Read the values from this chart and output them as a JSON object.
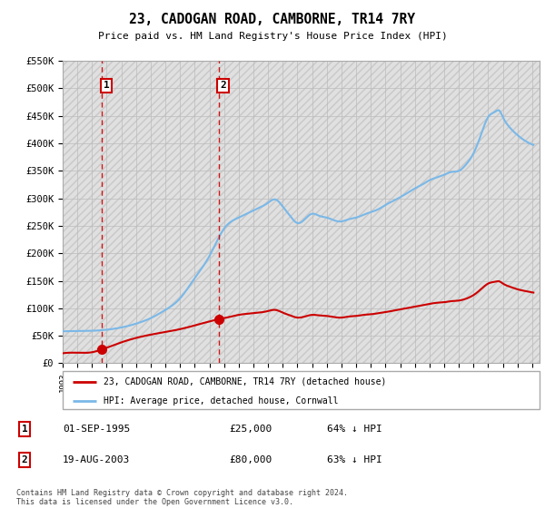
{
  "title": "23, CADOGAN ROAD, CAMBORNE, TR14 7RY",
  "subtitle": "Price paid vs. HM Land Registry's House Price Index (HPI)",
  "ylim": [
    0,
    550000
  ],
  "yticks": [
    0,
    50000,
    100000,
    150000,
    200000,
    250000,
    300000,
    350000,
    400000,
    450000,
    500000,
    550000
  ],
  "ytick_labels": [
    "£0",
    "£50K",
    "£100K",
    "£150K",
    "£200K",
    "£250K",
    "£300K",
    "£350K",
    "£400K",
    "£450K",
    "£500K",
    "£550K"
  ],
  "sale1_date": 1995.67,
  "sale1_price": 25000,
  "sale2_date": 2003.63,
  "sale2_price": 80000,
  "hpi_color": "#7ab8e8",
  "sale_color": "#cc0000",
  "vline_color": "#cc0000",
  "grid_color": "#bbbbbb",
  "hatch_color": "#d8d8d8",
  "legend1_text": "23, CADOGAN ROAD, CAMBORNE, TR14 7RY (detached house)",
  "legend2_text": "HPI: Average price, detached house, Cornwall",
  "table_row1": [
    "1",
    "01-SEP-1995",
    "£25,000",
    "64% ↓ HPI"
  ],
  "table_row2": [
    "2",
    "19-AUG-2003",
    "£80,000",
    "63% ↓ HPI"
  ],
  "footer": "Contains HM Land Registry data © Crown copyright and database right 2024.\nThis data is licensed under the Open Government Licence v3.0.",
  "xmin": 1993,
  "xmax": 2025.5,
  "hpi_points": [
    [
      1993.0,
      58000
    ],
    [
      1994.0,
      58500
    ],
    [
      1995.0,
      59000
    ],
    [
      1996.0,
      61000
    ],
    [
      1997.0,
      65000
    ],
    [
      1998.0,
      72000
    ],
    [
      1999.0,
      82000
    ],
    [
      2000.0,
      97000
    ],
    [
      2001.0,
      118000
    ],
    [
      2002.0,
      155000
    ],
    [
      2003.0,
      195000
    ],
    [
      2004.0,
      245000
    ],
    [
      2005.0,
      265000
    ],
    [
      2006.0,
      278000
    ],
    [
      2007.0,
      292000
    ],
    [
      2007.5,
      298000
    ],
    [
      2008.0,
      285000
    ],
    [
      2008.5,
      268000
    ],
    [
      2009.0,
      255000
    ],
    [
      2009.5,
      262000
    ],
    [
      2010.0,
      272000
    ],
    [
      2010.5,
      268000
    ],
    [
      2011.0,
      265000
    ],
    [
      2011.5,
      260000
    ],
    [
      2012.0,
      258000
    ],
    [
      2012.5,
      262000
    ],
    [
      2013.0,
      265000
    ],
    [
      2013.5,
      270000
    ],
    [
      2014.0,
      275000
    ],
    [
      2014.5,
      280000
    ],
    [
      2015.0,
      288000
    ],
    [
      2015.5,
      295000
    ],
    [
      2016.0,
      302000
    ],
    [
      2016.5,
      310000
    ],
    [
      2017.0,
      318000
    ],
    [
      2017.5,
      325000
    ],
    [
      2018.0,
      333000
    ],
    [
      2018.5,
      338000
    ],
    [
      2019.0,
      343000
    ],
    [
      2019.5,
      348000
    ],
    [
      2020.0,
      350000
    ],
    [
      2020.5,
      362000
    ],
    [
      2021.0,
      382000
    ],
    [
      2021.5,
      415000
    ],
    [
      2022.0,
      448000
    ],
    [
      2022.5,
      458000
    ],
    [
      2022.75,
      460000
    ],
    [
      2023.0,
      448000
    ],
    [
      2023.5,
      428000
    ],
    [
      2024.0,
      415000
    ],
    [
      2024.5,
      405000
    ],
    [
      2025.0,
      398000
    ]
  ],
  "prop_points": [
    [
      1993.0,
      18000
    ],
    [
      1994.0,
      19000
    ],
    [
      1995.0,
      20000
    ],
    [
      1995.67,
      25000
    ],
    [
      1997.0,
      38000
    ],
    [
      1999.0,
      52000
    ],
    [
      2001.0,
      62000
    ],
    [
      2003.0,
      76000
    ],
    [
      2003.63,
      80000
    ],
    [
      2004.0,
      82000
    ],
    [
      2005.0,
      88000
    ],
    [
      2006.0,
      91000
    ],
    [
      2007.0,
      95000
    ],
    [
      2007.5,
      97000
    ],
    [
      2008.0,
      92000
    ],
    [
      2008.5,
      87000
    ],
    [
      2009.0,
      83000
    ],
    [
      2009.5,
      85000
    ],
    [
      2010.0,
      88000
    ],
    [
      2010.5,
      87000
    ],
    [
      2011.0,
      86000
    ],
    [
      2011.5,
      84000
    ],
    [
      2012.0,
      83000
    ],
    [
      2012.5,
      85000
    ],
    [
      2013.0,
      86000
    ],
    [
      2013.5,
      88000
    ],
    [
      2014.0,
      89000
    ],
    [
      2014.5,
      91000
    ],
    [
      2015.0,
      93000
    ],
    [
      2015.5,
      95500
    ],
    [
      2016.0,
      98000
    ],
    [
      2016.5,
      100500
    ],
    [
      2017.0,
      103000
    ],
    [
      2017.5,
      105500
    ],
    [
      2018.0,
      108000
    ],
    [
      2018.5,
      110000
    ],
    [
      2019.0,
      111000
    ],
    [
      2019.5,
      113000
    ],
    [
      2020.0,
      114000
    ],
    [
      2020.5,
      117500
    ],
    [
      2021.0,
      124000
    ],
    [
      2021.5,
      134500
    ],
    [
      2022.0,
      145000
    ],
    [
      2022.5,
      148500
    ],
    [
      2022.75,
      149000
    ],
    [
      2023.0,
      145000
    ],
    [
      2023.5,
      139000
    ],
    [
      2024.0,
      134500
    ],
    [
      2024.5,
      131500
    ],
    [
      2025.0,
      129000
    ]
  ]
}
